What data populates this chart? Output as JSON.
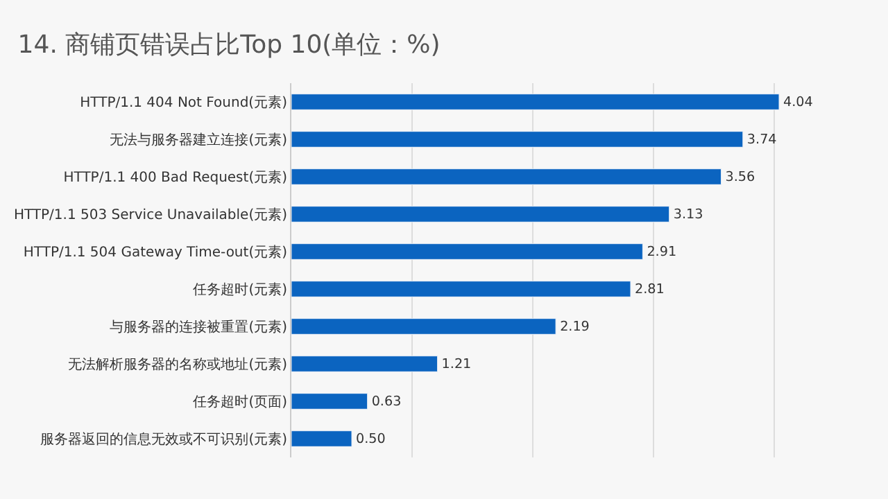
{
  "chart_data": {
    "type": "bar",
    "orientation": "horizontal",
    "title": "14. 商铺页错误占比Top 10(单位：%)",
    "categories": [
      "HTTP/1.1 404 Not Found(元素)",
      "无法与服务器建立连接(元素)",
      "HTTP/1.1 400 Bad Request(元素)",
      "HTTP/1.1 503 Service Unavailable(元素)",
      "HTTP/1.1 504 Gateway Time-out(元素)",
      "任务超时(元素)",
      "与服务器的连接被重置(元素)",
      "无法解析服务器的名称或地址(元素)",
      "任务超时(页面)",
      "服务器返回的信息无效或不可识别(元素)"
    ],
    "values": [
      4.04,
      3.74,
      3.56,
      3.13,
      2.91,
      2.81,
      2.19,
      1.21,
      0.63,
      0.5
    ],
    "value_labels": [
      "4.04",
      "3.74",
      "3.56",
      "3.13",
      "2.91",
      "2.81",
      "2.19",
      "1.21",
      "0.63",
      "0.50"
    ],
    "color": "#0b64c0",
    "grid": "x",
    "tick_labels": "y",
    "legend": false
  }
}
